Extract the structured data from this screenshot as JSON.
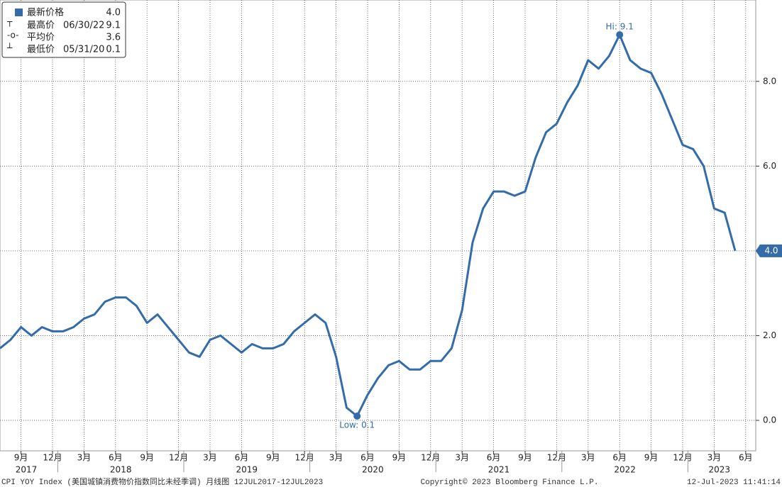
{
  "chart_data": {
    "type": "line",
    "legend": [
      {
        "name": "最新价格",
        "date": "",
        "value": "4.0"
      },
      {
        "name": "最高价",
        "date": "06/30/22",
        "value": "9.1"
      },
      {
        "name": "平均价",
        "date": "",
        "value": "3.6"
      },
      {
        "name": "最低价",
        "date": "05/31/20",
        "value": "0.1"
      }
    ],
    "categories": [
      null,
      null,
      "9月",
      null,
      null,
      "12月",
      null,
      null,
      "3月",
      null,
      null,
      "6月",
      null,
      null,
      "9月",
      null,
      null,
      "12月",
      null,
      null,
      "3月",
      null,
      null,
      "6月",
      null,
      null,
      "9月",
      null,
      null,
      "12月",
      null,
      null,
      "3月",
      null,
      null,
      "6月",
      null,
      null,
      "9月",
      null,
      null,
      "12月",
      null,
      null,
      "3月",
      null,
      null,
      "6月",
      null,
      null,
      "9月",
      null,
      null,
      "12月",
      null,
      null,
      "3月",
      null,
      null,
      "6月",
      null,
      null,
      "9月",
      null,
      null,
      "12月",
      null,
      null,
      "3月",
      null,
      null,
      "6月"
    ],
    "year_groups": [
      {
        "label": "2017",
        "count": 6
      },
      {
        "label": "2018",
        "count": 12
      },
      {
        "label": "2019",
        "count": 12
      },
      {
        "label": "2020",
        "count": 12
      },
      {
        "label": "2021",
        "count": 12
      },
      {
        "label": "2022",
        "count": 12
      },
      {
        "label": "2023",
        "count": 6
      }
    ],
    "series": [
      {
        "name": "CPI YOY Index",
        "color": "#336ca8",
        "values": [
          1.7,
          1.9,
          2.2,
          2.0,
          2.2,
          2.1,
          2.1,
          2.2,
          2.4,
          2.5,
          2.8,
          2.9,
          2.9,
          2.7,
          2.3,
          2.5,
          2.2,
          1.9,
          1.6,
          1.5,
          1.9,
          2.0,
          1.8,
          1.6,
          1.8,
          1.7,
          1.7,
          1.8,
          2.1,
          2.3,
          2.5,
          2.3,
          1.5,
          0.3,
          0.1,
          0.6,
          1.0,
          1.3,
          1.4,
          1.2,
          1.2,
          1.4,
          1.4,
          1.7,
          2.6,
          4.2,
          5.0,
          5.4,
          5.4,
          5.3,
          5.4,
          6.2,
          6.8,
          7.0,
          7.5,
          7.9,
          8.5,
          8.3,
          8.6,
          9.1,
          8.5,
          8.3,
          8.2,
          7.7,
          7.1,
          6.5,
          6.4,
          6.0,
          5.0,
          4.9,
          4.0,
          null
        ]
      }
    ],
    "hi_label": "Hi: 9.1",
    "low_label": "Low: 0.1",
    "last_label": "4.0",
    "ylim": [
      -0.72,
      9.92
    ],
    "yticks": [
      {
        "value": 0,
        "label": "0.0"
      },
      {
        "value": 2,
        "label": "2.0"
      },
      {
        "value": 4,
        "label": "4.0"
      },
      {
        "value": 6,
        "label": "6.0"
      },
      {
        "value": 8,
        "label": "8.0"
      }
    ],
    "grid": true,
    "footer_left": "CPI YOY Index (美国城镇消费物价指数同比未经季调)  月线图 12JUL2017-12JUL2023",
    "footer_center": "Copyright© 2023 Bloomberg Finance L.P.",
    "footer_right": "12-Jul-2023 11:41:14"
  }
}
